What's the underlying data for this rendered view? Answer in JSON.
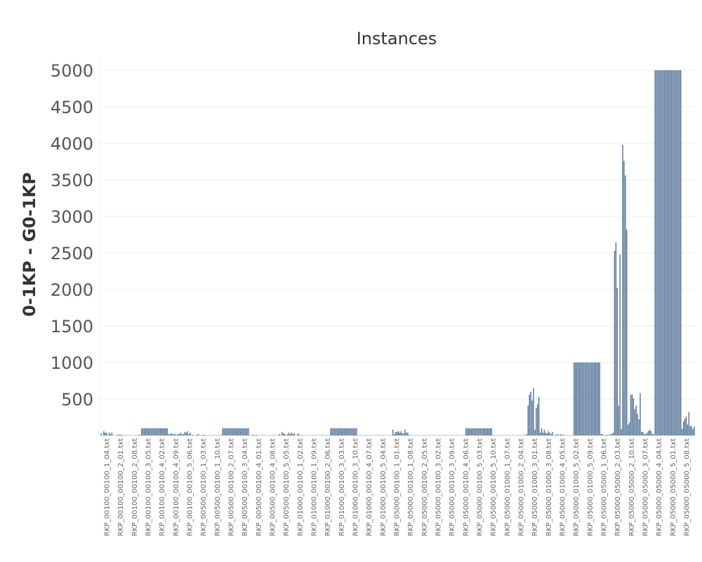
{
  "chart_data": {
    "type": "bar",
    "title": "Instances",
    "ylabel": "0-1KP - G0-1KP",
    "xlabel": "",
    "ylim": [
      0,
      5000
    ],
    "yticks": [
      500,
      1000,
      1500,
      2000,
      2500,
      3000,
      3500,
      4000,
      4500,
      5000
    ],
    "grid": true,
    "color": "#4e6f94",
    "tick_labels": [
      "RKP_00100_00100_1_04.txt",
      "RKP_00100_00100_2_01.txt",
      "RKP_00100_00100_2_08.txt",
      "RKP_00100_00100_3_05.txt",
      "RKP_00100_00100_4_02.txt",
      "RKP_00100_00100_4_09.txt",
      "RKP_00100_00100_5_06.txt",
      "RKP_00500_00100_1_03.txt",
      "RKP_00500_00100_1_10.txt",
      "RKP_00500_00100_2_07.txt",
      "RKP_00500_00100_3_04.txt",
      "RKP_00500_00100_4_01.txt",
      "RKP_00500_00100_4_08.txt",
      "RKP_00500_00100_5_05.txt",
      "RKP_01000_00100_1_02.txt",
      "RKP_01000_00100_1_09.txt",
      "RKP_01000_00100_2_06.txt",
      "RKP_01000_00100_3_03.txt",
      "RKP_01000_00100_3_10.txt",
      "RKP_01000_00100_4_07.txt",
      "RKP_01000_00100_5_04.txt",
      "RKP_05000_00100_1_01.txt",
      "RKP_05000_00100_1_08.txt",
      "RKP_05000_00100_2_05.txt",
      "RKP_05000_00100_3_02.txt",
      "RKP_05000_00100_3_09.txt",
      "RKP_05000_00100_4_06.txt",
      "RKP_05000_00100_5_03.txt",
      "RKP_05000_00100_5_10.txt",
      "RKP_05000_01000_1_07.txt",
      "RKP_05000_01000_2_04.txt",
      "RKP_05000_01000_3_01.txt",
      "RKP_05000_01000_3_08.txt",
      "RKP_05000_01000_4_05.txt",
      "RKP_05000_01000_5_02.txt",
      "RKP_05000_01000_5_09.txt",
      "RKP_05000_05000_1_06.txt",
      "RKP_05000_05000_2_03.txt",
      "RKP_05000_05000_2_10.txt",
      "RKP_05000_05000_3_07.txt",
      "RKP_05000_05000_4_04.txt",
      "RKP_05000_05000_5_01.txt",
      "RKP_05000_05000_5_08.txt"
    ],
    "values": [
      30,
      5,
      60,
      40,
      40,
      5,
      40,
      20,
      40,
      5,
      5,
      5,
      10,
      15,
      10,
      15,
      5,
      5,
      5,
      5,
      5,
      5,
      5,
      5,
      5,
      5,
      5,
      5,
      10,
      10,
      100,
      100,
      100,
      100,
      100,
      100,
      100,
      100,
      100,
      100,
      100,
      100,
      100,
      100,
      100,
      100,
      100,
      100,
      100,
      100,
      20,
      20,
      30,
      20,
      20,
      20,
      10,
      20,
      20,
      40,
      20,
      20,
      50,
      40,
      60,
      20,
      40,
      10,
      10,
      5,
      5,
      10,
      20,
      5,
      5,
      5,
      10,
      10,
      5,
      5,
      5,
      5,
      5,
      5,
      5,
      5,
      5,
      5,
      5,
      5,
      100,
      100,
      100,
      100,
      100,
      100,
      100,
      100,
      100,
      100,
      100,
      100,
      100,
      100,
      100,
      100,
      100,
      100,
      100,
      100,
      5,
      5,
      10,
      10,
      5,
      10,
      5,
      5,
      5,
      5,
      5,
      5,
      5,
      5,
      5,
      5,
      5,
      5,
      5,
      5,
      5,
      5,
      20,
      5,
      50,
      30,
      20,
      5,
      20,
      40,
      20,
      40,
      20,
      30,
      5,
      10,
      30,
      10,
      5,
      5,
      5,
      5,
      5,
      5,
      5,
      5,
      5,
      5,
      5,
      5,
      5,
      5,
      5,
      5,
      5,
      5,
      5,
      5,
      5,
      5,
      100,
      100,
      100,
      100,
      100,
      100,
      100,
      100,
      100,
      100,
      100,
      100,
      100,
      100,
      100,
      100,
      100,
      100,
      100,
      100,
      5,
      5,
      5,
      5,
      5,
      5,
      5,
      5,
      5,
      5,
      5,
      5,
      5,
      5,
      5,
      5,
      5,
      5,
      5,
      5,
      5,
      5,
      5,
      5,
      5,
      5,
      80,
      20,
      50,
      50,
      60,
      40,
      60,
      30,
      30,
      80,
      40,
      40,
      10,
      5,
      5,
      5,
      5,
      5,
      5,
      5,
      5,
      5,
      5,
      5,
      5,
      5,
      5,
      5,
      5,
      5,
      5,
      5,
      5,
      5,
      5,
      5,
      5,
      5,
      5,
      5,
      5,
      5,
      5,
      5,
      5,
      5,
      5,
      5,
      5,
      5,
      5,
      5,
      5,
      5,
      100,
      100,
      100,
      100,
      100,
      100,
      100,
      100,
      100,
      100,
      100,
      100,
      100,
      100,
      100,
      100,
      100,
      100,
      100,
      100,
      5,
      5,
      5,
      5,
      5,
      5,
      5,
      5,
      5,
      5,
      5,
      5,
      5,
      5,
      5,
      5,
      5,
      5,
      5,
      5,
      5,
      5,
      5,
      10,
      5,
      20,
      410,
      560,
      600,
      480,
      650,
      80,
      380,
      430,
      530,
      40,
      100,
      40,
      80,
      40,
      30,
      60,
      40,
      20,
      50,
      5,
      10,
      10,
      20,
      5,
      20,
      10,
      10,
      5,
      5,
      5,
      5,
      5,
      5,
      5,
      1000,
      1000,
      1000,
      1000,
      1000,
      1000,
      1000,
      1000,
      1000,
      1000,
      1000,
      1000,
      1000,
      1000,
      1000,
      1000,
      1000,
      1000,
      1000,
      1000,
      20,
      20,
      5,
      5,
      10,
      10,
      10,
      20,
      20,
      40,
      2530,
      2640,
      2020,
      410,
      2480,
      90,
      3980,
      3760,
      3560,
      2820,
      150,
      180,
      560,
      560,
      510,
      360,
      410,
      300,
      220,
      580,
      50,
      50,
      20,
      20,
      40,
      60,
      80,
      60,
      20,
      20,
      5000,
      5000,
      5000,
      5000,
      5000,
      5000,
      5000,
      5000,
      5000,
      5000,
      5000,
      5000,
      5000,
      5000,
      5000,
      5000,
      5000,
      5000,
      5000,
      5000,
      90,
      190,
      230,
      260,
      150,
      320,
      130,
      130,
      90,
      120
    ]
  }
}
